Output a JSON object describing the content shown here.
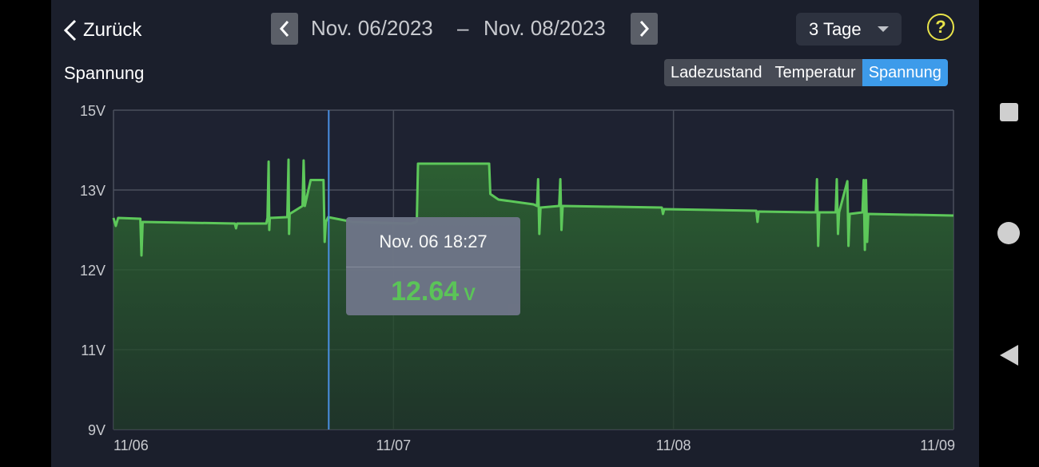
{
  "header": {
    "back_label": "Zurück",
    "start_date": "Nov. 06/2023",
    "separator": "–",
    "end_date": "Nov. 08/2023",
    "period": "3 Tage",
    "help_symbol": "?"
  },
  "section": {
    "title": "Spannung",
    "tabs": [
      {
        "label": "Ladezustand",
        "active": false
      },
      {
        "label": "Temperatur",
        "active": false
      },
      {
        "label": "Spannung",
        "active": true
      }
    ]
  },
  "tooltip": {
    "time": "Nov. 06 18:27",
    "value": "12.64",
    "unit": "V"
  },
  "colors": {
    "line": "#5dc85a",
    "cursor": "#4a90e2",
    "active_tab": "#3d9bea",
    "help": "#e8e34a"
  },
  "chart_data": {
    "type": "line",
    "title": "Spannung",
    "xlabel": "",
    "ylabel": "",
    "x_ticks": [
      "11/06",
      "11/07",
      "11/08",
      "11/09"
    ],
    "x_range": [
      0,
      72
    ],
    "y_ticks": [
      "15V",
      "13V",
      "12V",
      "11V",
      "9V"
    ],
    "y_tick_values": [
      15,
      13,
      12,
      11,
      9
    ],
    "grid": true,
    "cursor_x": 18.45,
    "series": [
      {
        "points": [
          [
            0,
            12.65
          ],
          [
            0.2,
            12.55
          ],
          [
            0.4,
            12.65
          ],
          [
            2.3,
            12.64
          ],
          [
            2.4,
            12.18
          ],
          [
            2.5,
            12.6
          ],
          [
            10.4,
            12.58
          ],
          [
            10.5,
            12.52
          ],
          [
            10.6,
            12.58
          ],
          [
            13.1,
            12.58
          ],
          [
            13.2,
            12.65
          ],
          [
            13.3,
            13.71
          ],
          [
            13.35,
            12.5
          ],
          [
            13.4,
            12.65
          ],
          [
            14.9,
            12.66
          ],
          [
            15,
            13.76
          ],
          [
            15.05,
            12.45
          ],
          [
            15.1,
            12.7
          ],
          [
            16.2,
            12.8
          ],
          [
            16.3,
            13.74
          ],
          [
            16.4,
            12.8
          ],
          [
            16.9,
            13.25
          ],
          [
            17.9,
            13.25
          ],
          [
            18,
            13.25
          ],
          [
            18.1,
            12.35
          ],
          [
            18.2,
            12.6
          ],
          [
            18.4,
            12.66
          ],
          [
            19.8,
            12.62
          ],
          [
            20.5,
            12.6
          ],
          [
            25.5,
            12.58
          ],
          [
            26,
            12.6
          ],
          [
            26.1,
            13.66
          ],
          [
            32.2,
            13.66
          ],
          [
            32.3,
            12.95
          ],
          [
            33,
            12.88
          ],
          [
            36,
            12.82
          ],
          [
            36.3,
            12.8
          ],
          [
            36.4,
            13.27
          ],
          [
            36.5,
            12.45
          ],
          [
            36.6,
            12.78
          ],
          [
            38.2,
            12.8
          ],
          [
            38.3,
            13.27
          ],
          [
            38.4,
            12.5
          ],
          [
            38.5,
            12.8
          ],
          [
            47,
            12.78
          ],
          [
            47.1,
            12.7
          ],
          [
            47.2,
            12.76
          ],
          [
            55.1,
            12.74
          ],
          [
            55.2,
            12.6
          ],
          [
            55.3,
            12.73
          ],
          [
            60.2,
            12.72
          ],
          [
            60.3,
            13.27
          ],
          [
            60.4,
            12.3
          ],
          [
            60.5,
            12.72
          ],
          [
            61.9,
            12.72
          ],
          [
            62,
            13.27
          ],
          [
            62.1,
            12.45
          ],
          [
            62.2,
            12.72
          ],
          [
            62.9,
            13.22
          ],
          [
            63,
            12.3
          ],
          [
            63.1,
            12.7
          ],
          [
            64.2,
            12.72
          ],
          [
            64.3,
            13.25
          ],
          [
            64.4,
            12.25
          ],
          [
            64.5,
            13.25
          ],
          [
            64.6,
            12.35
          ],
          [
            64.7,
            12.7
          ],
          [
            72,
            12.68
          ]
        ]
      }
    ]
  }
}
